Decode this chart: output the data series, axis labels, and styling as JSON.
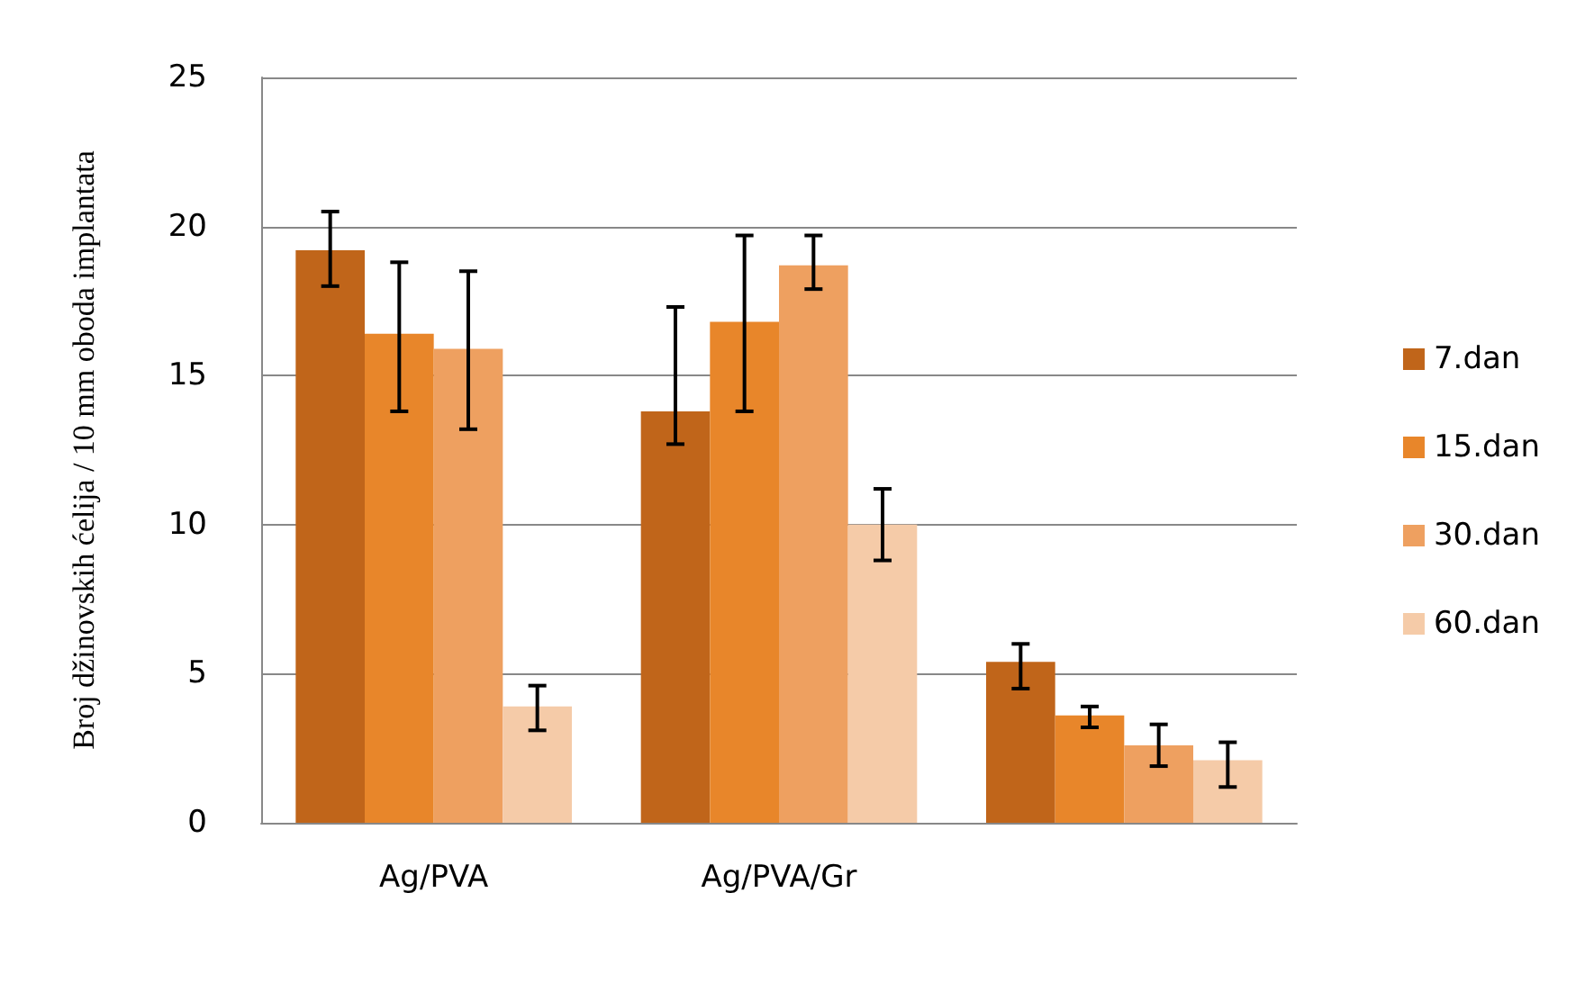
{
  "chart_data": {
    "type": "bar",
    "ylabel": "Broj džinovskih ćelija / 10 mm oboda implantata",
    "categories": [
      "Ag/PVA",
      "Ag/PVA/Gr",
      null
    ],
    "series": [
      {
        "name": "7.dan",
        "color": "#c0651a",
        "values": [
          19.2,
          13.8,
          5.4
        ],
        "errors": [
          [
            18.0,
            20.5
          ],
          [
            12.7,
            17.3
          ],
          [
            4.5,
            6.0
          ]
        ]
      },
      {
        "name": "15.dan",
        "color": "#e8862a",
        "values": [
          16.4,
          16.8,
          3.6
        ],
        "errors": [
          [
            13.8,
            18.8
          ],
          [
            13.8,
            19.7
          ],
          [
            3.2,
            3.9
          ]
        ]
      },
      {
        "name": "30.dan",
        "color": "#eea060",
        "values": [
          15.9,
          18.7,
          2.6
        ],
        "errors": [
          [
            13.2,
            18.5
          ],
          [
            17.9,
            19.7
          ],
          [
            1.9,
            3.3
          ]
        ]
      },
      {
        "name": "60.dan",
        "color": "#f5cba8",
        "values": [
          3.9,
          10.0,
          2.1
        ],
        "errors": [
          [
            3.1,
            4.6
          ],
          [
            8.8,
            11.2
          ],
          [
            1.2,
            2.7
          ]
        ]
      }
    ],
    "ylim": [
      0,
      25
    ],
    "yticks": [
      0,
      5,
      10,
      15,
      20,
      25
    ],
    "grid": "y",
    "legend": "right"
  }
}
